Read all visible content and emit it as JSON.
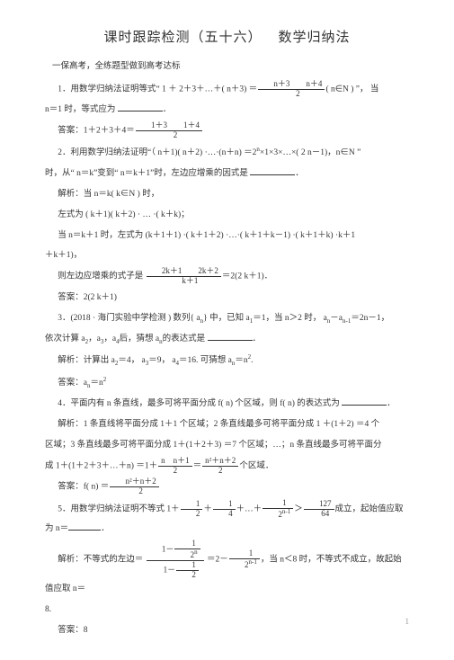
{
  "title_a": "课时跟踪检测（五十六）",
  "title_b": "数学归纳法",
  "subtitle": "一保高考，全练题型做到高考达标",
  "q1_a": "1．用数学归纳法证明等式“ 1 ＋ 2＋3＋…＋( n＋3) ＝",
  "q1_frac_num": "n＋3　　n＋4",
  "q1_frac_den": "2",
  "q1_b": "( n∈N ) ”， 当",
  "q1_c": "n＝1 时，等式应为",
  "q1_ans_label": "答案：",
  "q1_ans_a": "1＋2＋3＋4＝",
  "q1_ans_num": "1＋3　　1＋4",
  "q1_ans_den": "2",
  "q2_a": "2．利用数学归纳法证明“（ n＋1)( n＋2) ·…·(n＋n) ＝2",
  "q2_b": "×1×3×…×( 2 n－1)，n∈N ”",
  "q2_c": "时，从“ n＝k”变到“ n＝k＋1”时，左边应增乘的因式是",
  "q2_ans1": "解析：当 n＝k( k∈N ) 时，",
  "q2_ans2": "左式为 ( k＋1)( k＋2) · … ·( k＋k)；",
  "q2_ans3": "当 n＝k＋1 时，左式为 (k＋1＋1) ·( k＋1＋2) ·…·( k＋1＋k－1) ·( k＋1＋k) ·k＋1",
  "q2_ans3b": "＋k＋1)，",
  "q2_ans4a": "则左边应增乘的式子是",
  "q2_ans4_num": "2k＋1　　2k＋2",
  "q2_ans4_den": "k＋1",
  "q2_ans4b": "＝2(2 k＋1)．",
  "q2_final": "答案：2(2 k＋1)",
  "q3_a": "3．(2018 · 海门实验中学检测 ) 数列{ a",
  "q3_b": "} 中，已知 a",
  "q3_c": "＝1，当 n＞2 时， a",
  "q3_d": "－a",
  "q3_e": "＝2n－1，",
  "q3_f": "依次计算 a",
  "q3_g": "，a",
  "q3_h": "，a",
  "q3_i": "后，猜想 a",
  "q3_j": "的表达式是",
  "q3_ans1a": "解析：计算出 a",
  "q3_ans1b": "＝4， a",
  "q3_ans1c": "＝9， a",
  "q3_ans1d": "＝16. 可猜想 a",
  "q3_ans1e": "＝n",
  "q3_final_a": "答案：a",
  "q3_final_b": "＝n",
  "q4_a": "4．平面内有 n 条直线，最多可将平面分成 f( n) 个区域，则 f( n) 的表达式为",
  "q4_ans1": "解析：1 条直线将平面分成 1＋1 个区域；2 条直线最多可将平面分成 1 ＋(1＋2) ＝4 个",
  "q4_ans2": "区域；3 条直线最多可将平面分成 1＋(1＋2＋3) ＝7 个区域；…；n 条直线最多可将平面分",
  "q4_ans3a": "成 1＋(1＋2＋3＋…＋n) ＝1＋",
  "q4_ans3_num1": "n　n＋1",
  "q4_ans3_den1": "2",
  "q4_ans3b": "＝",
  "q4_ans3_num2": "n²＋n＋2",
  "q4_ans3_den2": "2",
  "q4_ans3c": "个区域．",
  "q4_final_a": "答案：f( n) ＝",
  "q4_final_num": "n²＋n＋2",
  "q4_final_den": "2",
  "q5_a": "5．用数学归纳法证明不等式 1＋",
  "q5_f1n": "1",
  "q5_f1d": "2",
  "q5_b": "＋",
  "q5_f2n": "1",
  "q5_f2d": "4",
  "q5_c": "＋…＋",
  "q5_f3n": "1",
  "q5_f3d": "2",
  "q5_d": "＞",
  "q5_f4n": "127",
  "q5_f4d": "64",
  "q5_e": "成立，起始值应取为 n＝",
  "q5_ans1a": "解析：不等式的左边＝",
  "q5_ans1_num1": "1",
  "q5_ans1b": "＝2－",
  "q5_ans1_num2": "1",
  "q5_ans1c": "，当 n＜8 时，不等式不成立，故起始值应取 n＝",
  "q5_8a": "8.",
  "q5_final": "答案：8",
  "pagenum": "1"
}
